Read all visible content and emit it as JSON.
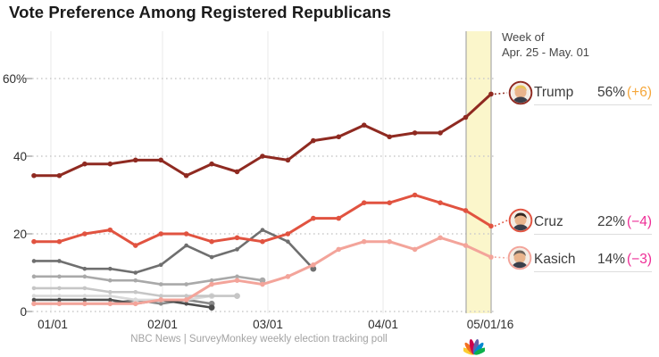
{
  "title": "Vote Preference Among Registered Republicans",
  "annotation": {
    "line1": "Week of",
    "line2": "Apr. 25 - May. 01"
  },
  "legend": [
    {
      "name": "Trump",
      "value": "56%",
      "delta": "(+6)",
      "delta_color": "#f5a73b",
      "ring": "#8f2a21",
      "hair": "#e8c35a"
    },
    {
      "name": "Cruz",
      "value": "22%",
      "delta": "(−4)",
      "delta_color": "#ee2d96",
      "ring": "#e15340",
      "hair": "#33261f"
    },
    {
      "name": "Kasich",
      "value": "14%",
      "delta": "(−3)",
      "delta_color": "#ee2d96",
      "ring": "#f3a49a",
      "hair": "#6e655c"
    }
  ],
  "footer": {
    "credit": "NBC News | SurveyMonkey weekly election tracking poll"
  },
  "colors": {
    "band": "#fbf6cb",
    "band_border": "#a9a9a9",
    "grid": "#cccccc",
    "month_line": "#e8e8e8",
    "axis_text": "#2e2e2e",
    "delta_up": "#f5a73b",
    "delta_down": "#ee2d96"
  },
  "chart_data": {
    "type": "line",
    "title": "Vote Preference Among Registered Republicans",
    "x_tick_labels": [
      "01/01",
      "02/01",
      "03/01",
      "04/01",
      "05/01/16"
    ],
    "y_tick_labels": [
      "0",
      "20",
      "40",
      "60%"
    ],
    "y_tick_values": [
      0,
      20,
      40,
      60
    ],
    "ylim": [
      0,
      65
    ],
    "grid": "dotted-horizontal",
    "legend_position": "right",
    "highlight_band": {
      "label": "Week of Apr. 25 - May. 01",
      "color": "#fbf6cb"
    },
    "series": [
      {
        "name": "Trump",
        "color": "#8f2a21",
        "end_dot": false,
        "values": [
          35,
          35,
          38,
          38,
          39,
          39,
          35,
          38,
          36,
          40,
          39,
          44,
          45,
          48,
          45,
          46,
          46,
          50,
          56
        ]
      },
      {
        "name": "Cruz",
        "color": "#e15340",
        "end_dot": false,
        "values": [
          18,
          18,
          20,
          21,
          17,
          20,
          20,
          18,
          19,
          18,
          20,
          24,
          24,
          28,
          28,
          30,
          28,
          26,
          22
        ]
      },
      {
        "name": "Kasich",
        "color": "#f3a49a",
        "end_dot": false,
        "values": [
          2,
          2,
          2,
          2,
          2,
          3,
          3,
          7,
          8,
          7,
          9,
          12,
          16,
          18,
          18,
          16,
          19,
          17,
          14
        ]
      },
      {
        "name": "unlabeled-gray-1",
        "color": "#6f6f6f",
        "end_dot": true,
        "values": [
          13,
          13,
          11,
          11,
          10,
          12,
          17,
          14,
          16,
          21,
          18,
          11
        ]
      },
      {
        "name": "unlabeled-gray-2",
        "color": "#a9a9a9",
        "end_dot": true,
        "values": [
          9,
          9,
          9,
          8,
          8,
          7,
          7,
          8,
          9,
          8
        ]
      },
      {
        "name": "unlabeled-gray-3",
        "color": "#c6c6c6",
        "end_dot": true,
        "values": [
          6,
          6,
          6,
          5,
          5,
          4,
          4,
          4,
          4
        ]
      },
      {
        "name": "unlabeled-gray-4",
        "color": "#d9d9d9",
        "end_dot": true,
        "values": [
          4,
          4,
          4,
          4,
          3,
          3,
          3,
          4
        ]
      },
      {
        "name": "unlabeled-gray-5",
        "color": "#4e4e4e",
        "end_dot": true,
        "values": [
          3,
          3,
          3,
          3,
          2,
          3,
          2,
          1
        ]
      },
      {
        "name": "unlabeled-gray-6",
        "color": "#8a8a8a",
        "end_dot": true,
        "values": [
          2,
          2,
          2,
          2,
          3,
          2,
          3,
          2
        ]
      }
    ]
  }
}
